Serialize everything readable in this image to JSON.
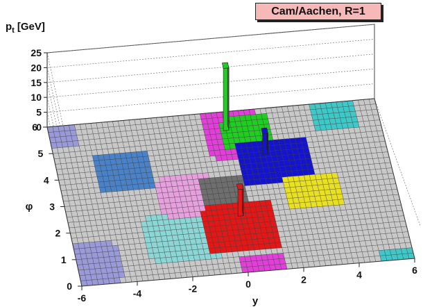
{
  "chart_data": {
    "type": "lego",
    "title": "Cam/Aachen, R=1",
    "zlabel_main": "p",
    "zlabel_sub": "t",
    "zlabel_unit": "[GeV]",
    "xlabel": "y",
    "ylabel": "φ",
    "xlim": [
      -6,
      6
    ],
    "ylim": [
      0,
      6
    ],
    "zlim": [
      0,
      25
    ],
    "x_ticks": [
      "-6",
      "-4",
      "-2",
      "0",
      "2",
      "4",
      "6"
    ],
    "y_ticks": [
      "0",
      "1",
      "2",
      "3",
      "4",
      "5",
      "6"
    ],
    "z_ticks": [
      "0",
      "5",
      "10",
      "15",
      "20",
      "25"
    ],
    "grid": true,
    "cell_size": 0.2,
    "regions": [
      {
        "name": "lavender-low-left",
        "color": "#9a9ad8",
        "x": [
          -6.0,
          -4.4
        ],
        "y": [
          0.0,
          1.6
        ]
      },
      {
        "name": "lavender-top-left",
        "color": "#9a9ad8",
        "x": [
          -6.0,
          -5.0
        ],
        "y": [
          5.2,
          6.0
        ]
      },
      {
        "name": "steel-blue",
        "color": "#4a82c8",
        "x": [
          -4.6,
          -2.6
        ],
        "y": [
          3.4,
          4.8
        ]
      },
      {
        "name": "pale-cyan",
        "color": "#8cd6d6",
        "x": [
          -3.4,
          -0.8
        ],
        "y": [
          0.6,
          2.4
        ]
      },
      {
        "name": "pink",
        "color": "#e6a0de",
        "x": [
          -2.6,
          -0.6
        ],
        "y": [
          2.2,
          3.8
        ]
      },
      {
        "name": "gray",
        "color": "#6e6e6e",
        "x": [
          -1.0,
          0.6
        ],
        "y": [
          2.6,
          3.6
        ]
      },
      {
        "name": "red",
        "color": "#e01818",
        "x": [
          -1.2,
          1.4
        ],
        "y": [
          0.8,
          2.6
        ]
      },
      {
        "name": "magenta",
        "color": "#e040d8",
        "x": [
          -0.4,
          1.6
        ],
        "y": [
          4.2,
          6.0
        ]
      },
      {
        "name": "magenta-low",
        "color": "#e040d8",
        "x": [
          -0.2,
          1.4
        ],
        "y": [
          0.0,
          0.6
        ]
      },
      {
        "name": "green",
        "color": "#22cc22",
        "x": [
          0.2,
          2.0
        ],
        "y": [
          4.6,
          5.8
        ]
      },
      {
        "name": "blue",
        "color": "#1414cc",
        "x": [
          0.6,
          3.2
        ],
        "y": [
          3.2,
          4.8
        ]
      },
      {
        "name": "yellow",
        "color": "#e8e020",
        "x": [
          2.0,
          4.0
        ],
        "y": [
          2.2,
          3.4
        ]
      },
      {
        "name": "cyan",
        "color": "#40c8c8",
        "x": [
          3.6,
          5.2
        ],
        "y": [
          5.0,
          6.0
        ]
      },
      {
        "name": "cyan-low",
        "color": "#40c8c8",
        "x": [
          4.8,
          6.0
        ],
        "y": [
          0.0,
          0.4
        ]
      }
    ],
    "spikes": [
      {
        "name": "green-spike",
        "color": "#22cc22",
        "x": 0.3,
        "y": 5.3,
        "pt": 21
      },
      {
        "name": "blue-spike",
        "color": "#1414cc",
        "x": 1.5,
        "y": 4.3,
        "pt": 7
      },
      {
        "name": "red-spike",
        "color": "#e01818",
        "x": 0.1,
        "y": 2.1,
        "pt": 9
      }
    ]
  }
}
